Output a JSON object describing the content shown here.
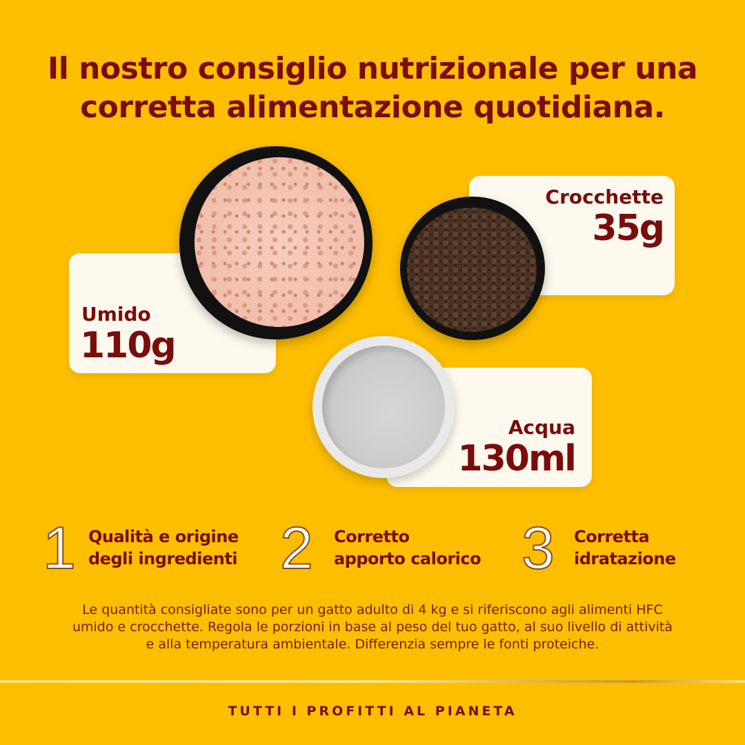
{
  "title": {
    "line1": "Il nostro consiglio nutrizionale per una",
    "line2": "corretta alimentazione quotidiana."
  },
  "portions": [
    {
      "label": "Umido",
      "value": "110g"
    },
    {
      "label": "Crocchette",
      "value": "35g"
    },
    {
      "label": "Acqua",
      "value": "130ml"
    }
  ],
  "pillars": [
    {
      "number": "1",
      "line1": "Qualità e origine",
      "line2": "degli ingredienti"
    },
    {
      "number": "2",
      "line1": "Corretto",
      "line2": "apporto calorico"
    },
    {
      "number": "3",
      "line1": "Corretta",
      "line2": "idratazione"
    }
  ],
  "disclaimer": {
    "line1": "Le quantità consigliate sono per un gatto adulto di 4 kg e si riferiscono agli alimenti HFC",
    "line2": "umido e crocchette. Regola le porzioni in base al peso del tuo gatto, al suo livello di attività",
    "line3": "e alla temperatura ambientale. Differenzia sempre le fonti proteiche."
  },
  "footer": "TUTTI I PROFITTI AL PIANETA",
  "colors": {
    "background": "#FDBE00",
    "text": "#7A0C0C",
    "card": "#FDF9EE"
  }
}
